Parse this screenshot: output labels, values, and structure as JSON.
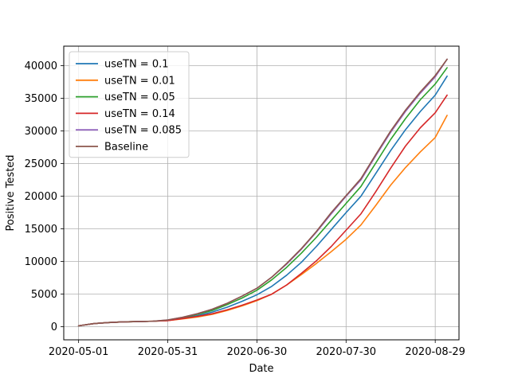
{
  "chart_data": {
    "type": "line",
    "xlabel": "Date",
    "ylabel": "Positive Tested",
    "x_tick_labels": [
      "2020-05-01",
      "2020-05-31",
      "2020-06-30",
      "2020-07-30",
      "2020-08-29"
    ],
    "xlim": [
      "2020-04-26",
      "2020-09-06"
    ],
    "ylim": [
      -2000,
      43000
    ],
    "y_ticks": [
      0,
      5000,
      10000,
      15000,
      20000,
      25000,
      30000,
      35000,
      40000
    ],
    "grid": true,
    "legend_position": "top-left",
    "x": [
      "2020-05-01",
      "2020-05-06",
      "2020-05-11",
      "2020-05-16",
      "2020-05-21",
      "2020-05-26",
      "2020-05-31",
      "2020-06-05",
      "2020-06-10",
      "2020-06-15",
      "2020-06-20",
      "2020-06-25",
      "2020-06-30",
      "2020-07-05",
      "2020-07-10",
      "2020-07-15",
      "2020-07-20",
      "2020-07-25",
      "2020-07-30",
      "2020-08-04",
      "2020-08-09",
      "2020-08-14",
      "2020-08-19",
      "2020-08-24",
      "2020-08-29",
      "2020-09-02"
    ],
    "series": [
      {
        "name": "useTN = 0.1",
        "color": "#1f77b4",
        "values": [
          150,
          480,
          650,
          750,
          800,
          850,
          950,
          1300,
          1700,
          2250,
          3000,
          3900,
          4900,
          6200,
          7900,
          9900,
          12300,
          14900,
          17500,
          20000,
          23500,
          27000,
          30200,
          33000,
          35500,
          38400
        ]
      },
      {
        "name": "useTN = 0.01",
        "color": "#ff7f0e",
        "values": [
          150,
          480,
          650,
          750,
          800,
          850,
          950,
          1200,
          1500,
          1900,
          2500,
          3200,
          4000,
          5000,
          6400,
          8000,
          9700,
          11500,
          13400,
          15600,
          18600,
          21700,
          24400,
          26800,
          29000,
          32400
        ]
      },
      {
        "name": "useTN = 0.05",
        "color": "#2ca02c",
        "values": [
          150,
          480,
          650,
          750,
          800,
          850,
          1000,
          1400,
          1900,
          2500,
          3400,
          4400,
          5600,
          7200,
          9100,
          11300,
          13700,
          16300,
          18900,
          21500,
          25100,
          28700,
          31900,
          34800,
          37200,
          39700
        ]
      },
      {
        "name": "useTN = 0.14",
        "color": "#d62728",
        "values": [
          150,
          480,
          650,
          750,
          800,
          850,
          950,
          1250,
          1600,
          2000,
          2600,
          3300,
          4100,
          5000,
          6400,
          8200,
          10100,
          12300,
          14800,
          17300,
          20700,
          24300,
          27700,
          30500,
          32800,
          35500
        ]
      },
      {
        "name": "useTN = 0.085",
        "color": "#9467bd",
        "values": [
          150,
          480,
          650,
          750,
          800,
          850,
          1050,
          1450,
          2000,
          2700,
          3600,
          4700,
          5900,
          7600,
          9600,
          11900,
          14500,
          17300,
          20000,
          22500,
          26200,
          29800,
          33000,
          35800,
          38300,
          41000
        ]
      },
      {
        "name": "Baseline",
        "color": "#8c564b",
        "values": [
          150,
          480,
          650,
          750,
          800,
          850,
          1050,
          1450,
          2000,
          2700,
          3600,
          4700,
          5900,
          7600,
          9700,
          12000,
          14600,
          17500,
          20100,
          22700,
          26400,
          30000,
          33200,
          36000,
          38500,
          41000
        ]
      }
    ]
  }
}
